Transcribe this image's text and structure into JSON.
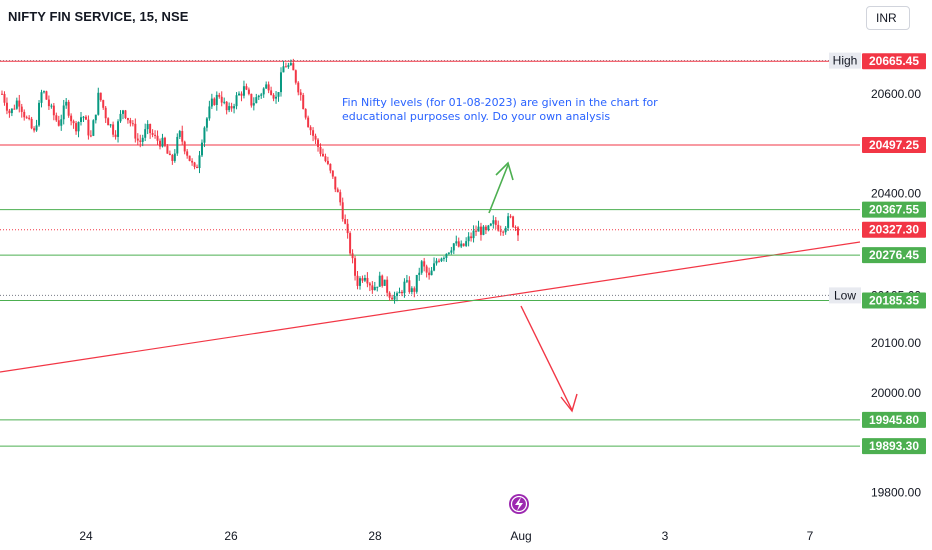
{
  "header": {
    "title": "NIFTY FIN SERVICE, 15, NSE",
    "currency": "INR"
  },
  "chart_data": {
    "type": "candlestick",
    "symbol": "NIFTY FIN SERVICE",
    "timeframe": "15",
    "exchange": "NSE",
    "ylim": [
      19755,
      20720
    ],
    "y_ticks": [
      "20600.00",
      "20400.00",
      "20100.00",
      "20000.00",
      "19800.00"
    ],
    "y_tick_values": [
      20600,
      20400,
      20100,
      20000,
      19800
    ],
    "x_ticks": [
      {
        "label": "24",
        "slot": 0
      },
      {
        "label": "26",
        "slot": 1
      },
      {
        "label": "28",
        "slot": 2
      },
      {
        "label": "Aug",
        "slot": 3
      },
      {
        "label": "3",
        "slot": 4
      },
      {
        "label": "7",
        "slot": 5
      }
    ],
    "high": {
      "label": "High",
      "value": "20666.60"
    },
    "low": {
      "label": "Low",
      "value": "20195.60"
    },
    "last_price": {
      "value": "20327.30",
      "color": "#f23645"
    },
    "resistance_levels": [
      {
        "value": "20665.45",
        "color": "#f23645"
      },
      {
        "value": "20497.25",
        "color": "#f23645"
      }
    ],
    "support_levels": [
      {
        "value": "20367.55",
        "color": "#4caf50"
      },
      {
        "value": "20276.45",
        "color": "#4caf50"
      },
      {
        "value": "20185.35",
        "color": "#4caf50"
      },
      {
        "value": "19945.80",
        "color": "#4caf50"
      },
      {
        "value": "19893.30",
        "color": "#4caf50"
      }
    ],
    "annotation": [
      "Fin Nifty levels (for 01-08-2023) are given in the chart for",
      "educational purposes only. Do your own analysis"
    ],
    "trendline": {
      "color": "#f23645"
    },
    "arrows": [
      {
        "direction": "up",
        "color": "#4caf50"
      },
      {
        "direction": "down",
        "color": "#f23645"
      }
    ],
    "colors": {
      "up": "#089981",
      "down": "#f23645",
      "support": "#4caf50",
      "resistance": "#f23645",
      "event": "#9c27b0"
    },
    "price_path": [
      20600,
      20560,
      20590,
      20550,
      20520,
      20610,
      20570,
      20540,
      20580,
      20530,
      20560,
      20510,
      20600,
      20550,
      20520,
      20570,
      20540,
      20500,
      20530,
      20510,
      20500,
      20460,
      20520,
      20480,
      20440,
      20530,
      20580,
      20600,
      20560,
      20590,
      20610,
      20580,
      20600,
      20620,
      20590,
      20660,
      20650,
      20600,
      20540,
      20500,
      20470,
      20430,
      20380,
      20300,
      20220,
      20240,
      20210,
      20230,
      20200,
      20190,
      20220,
      20200,
      20260,
      20230,
      20270,
      20280,
      20300,
      20290,
      20310,
      20330,
      20320,
      20340,
      20330,
      20350,
      20327
    ]
  }
}
